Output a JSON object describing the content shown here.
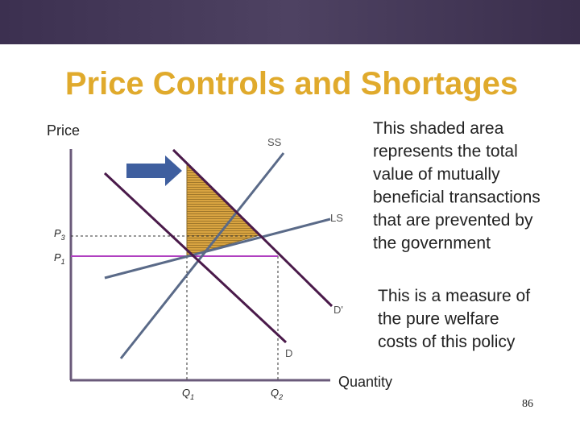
{
  "header": {
    "title": "Price Controls and Shortages"
  },
  "diagram": {
    "axis_labels": {
      "y": "Price",
      "x": "Quantity"
    },
    "curve_labels": {
      "ss": "SS",
      "ls": "LS",
      "d": "D",
      "d_prime": "D'"
    },
    "price_labels": [
      {
        "main": "P",
        "sub": "3"
      },
      {
        "main": "P",
        "sub": "1"
      }
    ],
    "quantity_labels": [
      {
        "main": "Q",
        "sub": "1"
      },
      {
        "main": "Q",
        "sub": "2"
      }
    ]
  },
  "annotations": [
    {
      "lines": [
        "This shaded area",
        "represents the total",
        "value of mutually",
        "beneficial transactions",
        "that are prevented by",
        "the government"
      ]
    },
    {
      "lines": [
        "This is a measure of",
        "the pure welfare",
        "costs of this policy"
      ]
    }
  ],
  "footer": {
    "page_number": "86"
  }
}
